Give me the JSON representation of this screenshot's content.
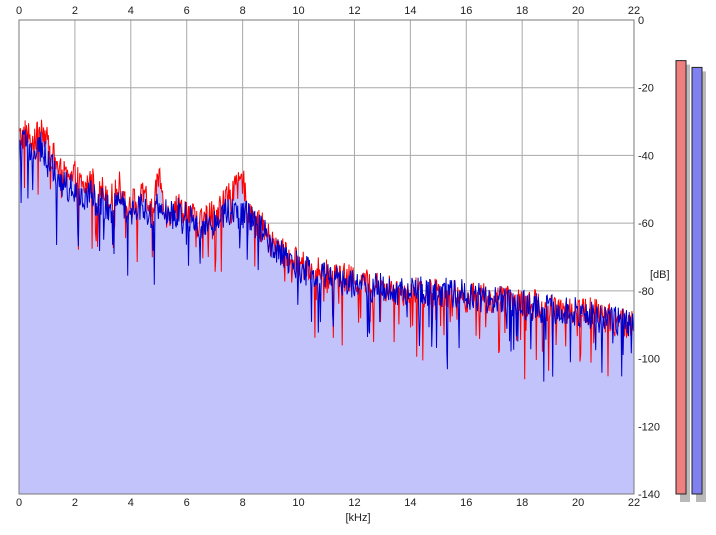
{
  "chart_data": {
    "type": "area",
    "title": "",
    "xlabel": "[kHz]",
    "ylabel": "[dB]",
    "xlim": [
      0,
      22
    ],
    "ylim": [
      -140,
      0
    ],
    "x_ticks": [
      "0",
      "2",
      "4",
      "6",
      "8",
      "10",
      "12",
      "14",
      "16",
      "18",
      "20",
      "22"
    ],
    "y_ticks": [
      "0",
      "-20",
      "-40",
      "-60",
      "-80",
      "-100",
      "-120",
      "-140"
    ],
    "grid": true,
    "fill_color": "#c3c3fb",
    "series": [
      {
        "color": "#ff0000",
        "x": [
          0,
          0.3,
          0.5,
          0.8,
          1.0,
          1.2,
          1.5,
          1.8,
          2.0,
          2.3,
          2.6,
          2.8,
          3.0,
          3.3,
          3.6,
          3.9,
          4.2,
          4.5,
          4.8,
          5.0,
          5.3,
          5.6,
          6.0,
          6.4,
          6.8,
          7.2,
          7.5,
          7.8,
          8.0,
          8.2,
          8.5,
          8.8,
          9.0,
          9.5,
          10.0,
          10.5,
          11.0,
          11.5,
          12.0,
          12.5,
          13.0,
          13.5,
          14.0,
          14.5,
          15.0,
          15.5,
          16.0,
          16.5,
          17.0,
          17.5,
          18.0,
          18.5,
          19.0,
          19.5,
          20.0,
          20.5,
          21.0,
          21.5,
          22.0
        ],
        "values": [
          -35,
          -33,
          -38,
          -31,
          -36,
          -40,
          -45,
          -48,
          -46,
          -50,
          -47,
          -52,
          -50,
          -53,
          -49,
          -55,
          -53,
          -52,
          -57,
          -45,
          -58,
          -55,
          -56,
          -60,
          -58,
          -55,
          -52,
          -50,
          -47,
          -55,
          -60,
          -62,
          -66,
          -69,
          -72,
          -74,
          -75,
          -76,
          -77,
          -78,
          -79,
          -80,
          -80,
          -81,
          -80,
          -81,
          -82,
          -82,
          -83,
          -83,
          -84,
          -84,
          -85,
          -85,
          -86,
          -86,
          -88,
          -89,
          -90
        ]
      },
      {
        "color": "#0000cc",
        "x": [
          0,
          0.3,
          0.5,
          0.8,
          1.0,
          1.2,
          1.5,
          1.8,
          2.0,
          2.3,
          2.6,
          2.8,
          3.0,
          3.3,
          3.6,
          3.9,
          4.2,
          4.5,
          4.8,
          5.0,
          5.3,
          5.6,
          6.0,
          6.4,
          6.8,
          7.2,
          7.5,
          7.8,
          8.0,
          8.2,
          8.5,
          8.8,
          9.0,
          9.5,
          10.0,
          10.5,
          11.0,
          11.5,
          12.0,
          12.5,
          13.0,
          13.5,
          14.0,
          14.5,
          15.0,
          15.5,
          16.0,
          16.5,
          17.0,
          17.5,
          18.0,
          18.5,
          19.0,
          19.5,
          20.0,
          20.5,
          21.0,
          21.5,
          22.0
        ],
        "values": [
          -38,
          -36,
          -40,
          -37,
          -42,
          -44,
          -48,
          -50,
          -49,
          -52,
          -50,
          -55,
          -54,
          -56,
          -52,
          -57,
          -55,
          -55,
          -59,
          -54,
          -58,
          -57,
          -57,
          -61,
          -60,
          -58,
          -56,
          -57,
          -58,
          -58,
          -61,
          -63,
          -68,
          -70,
          -73,
          -75,
          -76,
          -77,
          -78,
          -79,
          -79,
          -80,
          -80,
          -80,
          -80,
          -81,
          -81,
          -82,
          -83,
          -83,
          -84,
          -85,
          -85,
          -86,
          -86,
          -87,
          -88,
          -89,
          -89
        ]
      }
    ],
    "level_meters": {
      "left": {
        "color": "#f08080",
        "level_db": -12
      },
      "right": {
        "color": "#8080f0",
        "level_db": -14
      }
    }
  }
}
